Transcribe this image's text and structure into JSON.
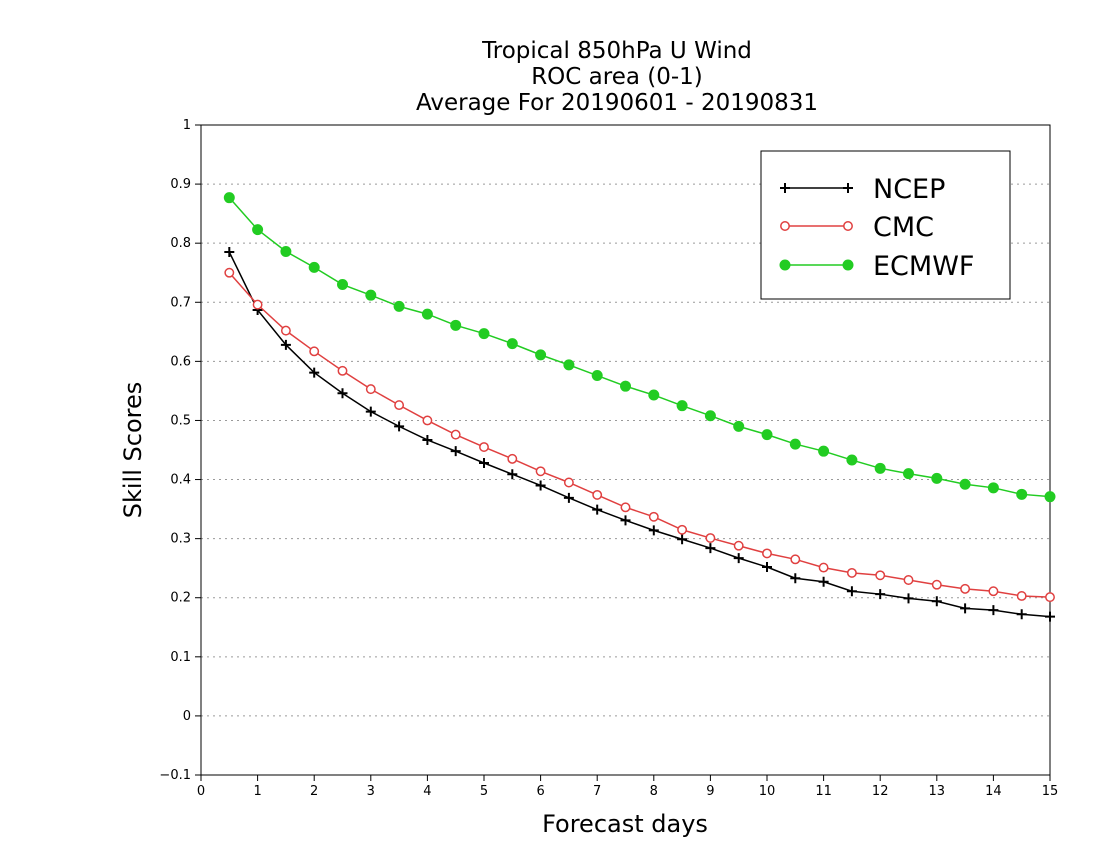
{
  "chart_data": {
    "type": "line",
    "title": [
      "Tropical 850hPa U Wind",
      "ROC area (0-1)",
      "Average For 20190601 - 20190831"
    ],
    "xlabel": "Forecast days",
    "ylabel": "Skill Scores",
    "xlim": [
      0,
      15
    ],
    "ylim": [
      -0.1,
      1
    ],
    "xticks": [
      "0",
      "1",
      "2",
      "3",
      "4",
      "5",
      "6",
      "7",
      "8",
      "9",
      "10",
      "11",
      "12",
      "13",
      "14",
      "15"
    ],
    "yticks": [
      "−0.1",
      "0",
      "0.1",
      "0.2",
      "0.3",
      "0.4",
      "0.5",
      "0.6",
      "0.7",
      "0.8",
      "0.9",
      "1"
    ],
    "grid": true,
    "legend_position": "top-right",
    "x": [
      0.5,
      1,
      1.5,
      2,
      2.5,
      3,
      3.5,
      4,
      4.5,
      5,
      5.5,
      6,
      6.5,
      7,
      7.5,
      8,
      8.5,
      9,
      9.5,
      10,
      10.5,
      11,
      11.5,
      12,
      12.5,
      13,
      13.5,
      14,
      14.5,
      15
    ],
    "series": [
      {
        "name": "NCEP",
        "color": "#000000",
        "marker": "plus",
        "values": [
          0.785,
          0.687,
          0.628,
          0.581,
          0.546,
          0.515,
          0.49,
          0.467,
          0.448,
          0.428,
          0.409,
          0.39,
          0.369,
          0.349,
          0.331,
          0.314,
          0.299,
          0.284,
          0.267,
          0.252,
          0.233,
          0.227,
          0.211,
          0.206,
          0.199,
          0.194,
          0.182,
          0.179,
          0.172,
          0.168
        ]
      },
      {
        "name": "CMC",
        "color": "#e04040",
        "marker": "open-circle",
        "values": [
          0.75,
          0.696,
          0.652,
          0.617,
          0.584,
          0.553,
          0.526,
          0.5,
          0.476,
          0.455,
          0.435,
          0.414,
          0.395,
          0.374,
          0.353,
          0.337,
          0.315,
          0.301,
          0.288,
          0.275,
          0.265,
          0.251,
          0.242,
          0.238,
          0.23,
          0.222,
          0.215,
          0.211,
          0.203,
          0.201
        ]
      },
      {
        "name": "ECMWF",
        "color": "#22cc22",
        "marker": "filled-circle",
        "values": [
          0.877,
          0.823,
          0.786,
          0.759,
          0.73,
          0.712,
          0.693,
          0.68,
          0.661,
          0.647,
          0.63,
          0.611,
          0.594,
          0.576,
          0.558,
          0.543,
          0.525,
          0.508,
          0.49,
          0.476,
          0.46,
          0.448,
          0.433,
          0.419,
          0.41,
          0.402,
          0.392,
          0.386,
          0.375,
          0.371
        ]
      }
    ]
  }
}
